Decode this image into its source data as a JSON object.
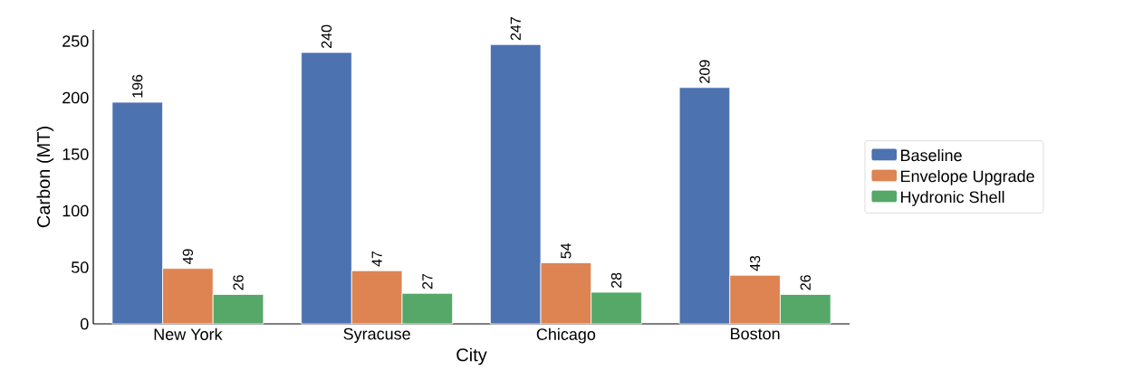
{
  "chart_data": {
    "type": "bar",
    "xlabel": "City",
    "ylabel": "Carbon (MT)",
    "categories": [
      "New York",
      "Syracuse",
      "Chicago",
      "Boston"
    ],
    "series": [
      {
        "name": "Baseline",
        "color": "#4c72b0",
        "values": [
          196,
          240,
          247,
          209
        ]
      },
      {
        "name": "Envelope Upgrade",
        "color": "#dd8452",
        "values": [
          49,
          47,
          54,
          43
        ]
      },
      {
        "name": "Hydronic Shell",
        "color": "#55a868",
        "values": [
          26,
          27,
          28,
          26
        ]
      }
    ],
    "ylim": [
      0,
      260
    ],
    "yticks": [
      0,
      50,
      100,
      150,
      200,
      250
    ],
    "data_labels": true,
    "legend": "right",
    "grid": false
  }
}
